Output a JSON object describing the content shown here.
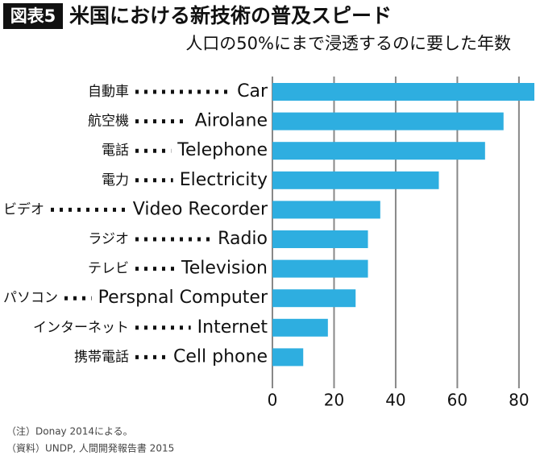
{
  "chart_data": {
    "type": "bar",
    "orientation": "horizontal",
    "badge": "図表5",
    "title": "米国における新技術の普及スピード",
    "subtitle": "人口の50%にまで浸透するのに要した年数",
    "categories_ja": [
      "自動車",
      "航空機",
      "電話",
      "電力",
      "ビデオ",
      "ラジオ",
      "テレビ",
      "パソコン",
      "インターネット",
      "携帯電話"
    ],
    "categories": [
      "Car",
      "Airolane",
      "Telephone",
      "Electricity",
      "Video Recorder",
      "Radio",
      "Television",
      "Perspnal Computer",
      "Internet",
      "Cell phone"
    ],
    "values": [
      85,
      75,
      69,
      54,
      35,
      31,
      31,
      27,
      18,
      10
    ],
    "color": "#2eaee0",
    "xlim": [
      0,
      85
    ],
    "xticks": [
      0,
      20,
      40,
      60,
      80
    ],
    "grid": true,
    "notes": [
      "（注）Donay 2014による。",
      "（資料）UNDP, 人間開発報告書 2015"
    ]
  }
}
